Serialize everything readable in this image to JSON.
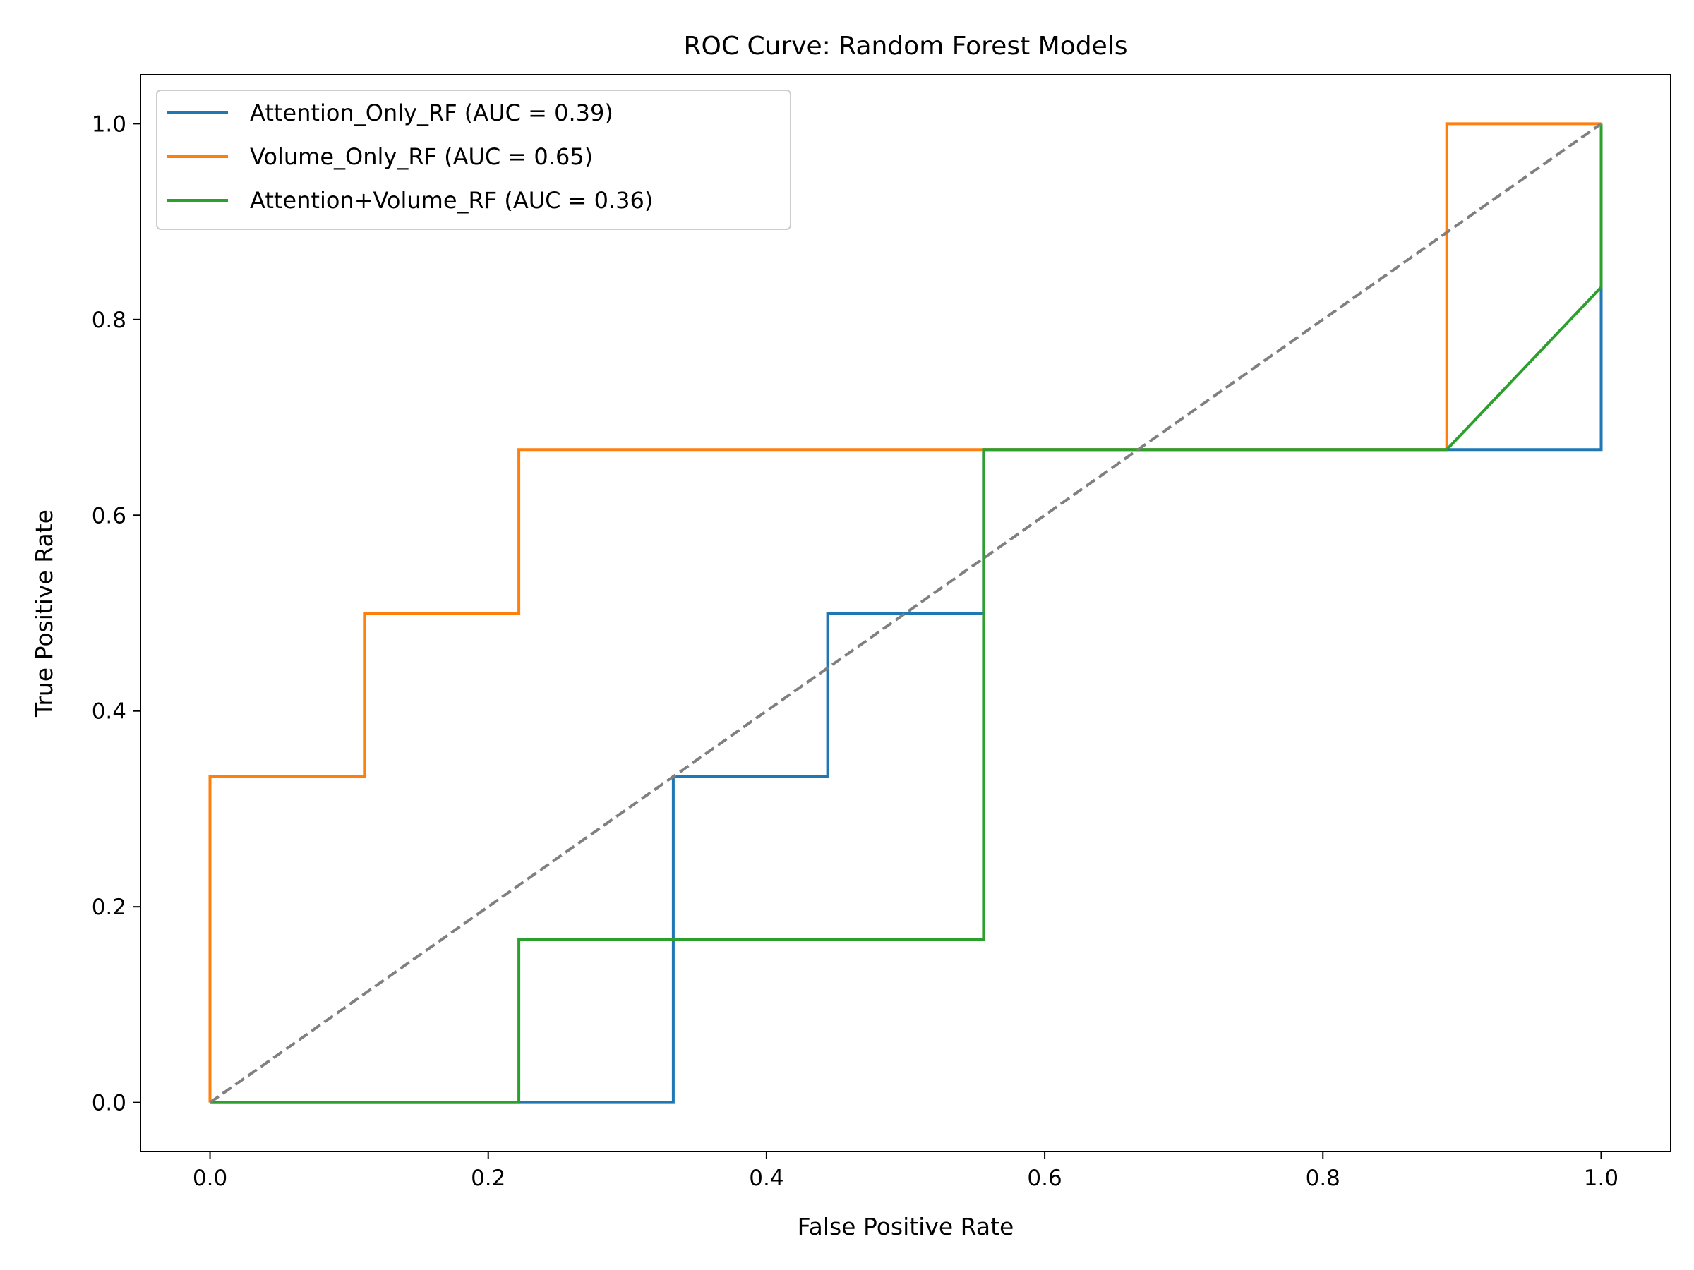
{
  "chart_data": {
    "type": "line",
    "title": "ROC Curve: Random Forest Models",
    "xlabel": "False Positive Rate",
    "ylabel": "True Positive Rate",
    "xlim": [
      -0.05,
      1.05
    ],
    "ylim": [
      -0.05,
      1.05
    ],
    "xticks": [
      0.0,
      0.2,
      0.4,
      0.6,
      0.8,
      1.0
    ],
    "yticks": [
      0.0,
      0.2,
      0.4,
      0.6,
      0.8,
      1.0
    ],
    "xtick_labels": [
      "0.0",
      "0.2",
      "0.4",
      "0.6",
      "0.8",
      "1.0"
    ],
    "ytick_labels": [
      "0.0",
      "0.2",
      "0.4",
      "0.6",
      "0.8",
      "1.0"
    ],
    "grid": false,
    "legend_position": "upper-left",
    "series": [
      {
        "name": "Attention_Only_RF (AUC = 0.39)",
        "color": "#1f77b4",
        "x": [
          0.0,
          0.333,
          0.333,
          0.444,
          0.444,
          0.556,
          0.556,
          0.889,
          1.0,
          1.0
        ],
        "y": [
          0.0,
          0.0,
          0.333,
          0.333,
          0.5,
          0.5,
          0.667,
          0.667,
          0.667,
          0.833
        ]
      },
      {
        "name": "Volume_Only_RF (AUC = 0.65)",
        "color": "#ff7f0e",
        "x": [
          0.0,
          0.0,
          0.111,
          0.111,
          0.222,
          0.222,
          0.889,
          0.889,
          1.0
        ],
        "y": [
          0.0,
          0.333,
          0.333,
          0.5,
          0.5,
          0.667,
          0.667,
          1.0,
          1.0
        ]
      },
      {
        "name": "Attention+Volume_RF (AUC = 0.36)",
        "color": "#2ca02c",
        "x": [
          0.0,
          0.222,
          0.222,
          0.556,
          0.556,
          0.889,
          1.0,
          1.0
        ],
        "y": [
          0.0,
          0.0,
          0.167,
          0.167,
          0.667,
          0.667,
          0.833,
          1.0
        ]
      }
    ],
    "reference_line": {
      "color": "#808080",
      "style": "dashed",
      "x": [
        0.0,
        1.0
      ],
      "y": [
        0.0,
        1.0
      ]
    }
  }
}
